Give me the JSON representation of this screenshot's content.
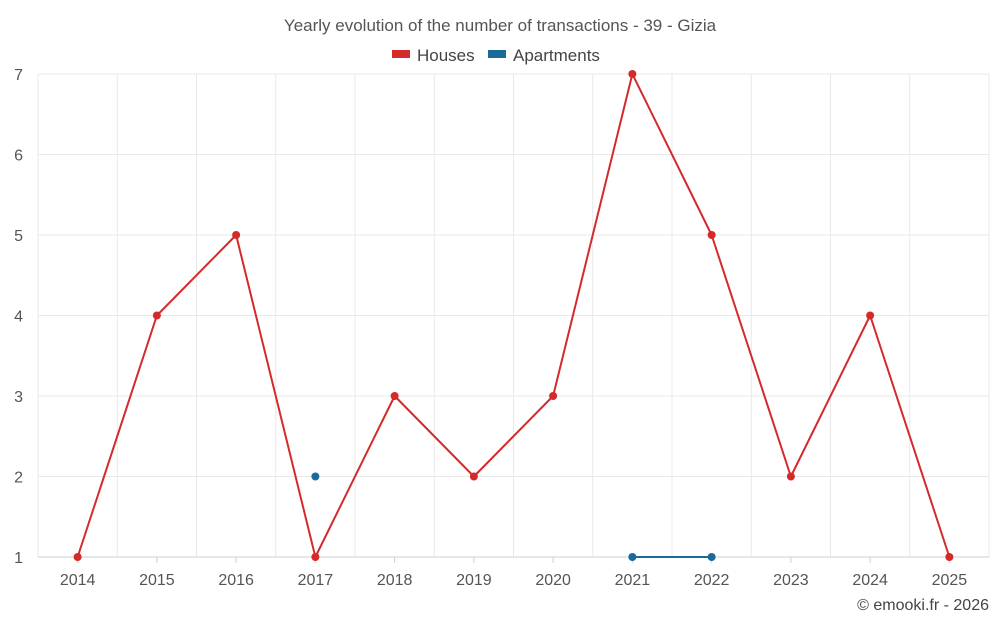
{
  "chart_data": {
    "type": "line",
    "title": "Yearly evolution of the number of transactions - 39 - Gizia",
    "xlabel": "",
    "ylabel": "",
    "categories": [
      "2014",
      "2015",
      "2016",
      "2017",
      "2018",
      "2019",
      "2020",
      "2021",
      "2022",
      "2023",
      "2024",
      "2025"
    ],
    "ylim": [
      1,
      7
    ],
    "yticks": [
      "1",
      "2",
      "3",
      "4",
      "5",
      "6",
      "7"
    ],
    "grid": true,
    "legend_position": "top-center",
    "series": [
      {
        "name": "Houses",
        "color": "#d42a2a",
        "values": [
          1,
          4,
          5,
          1,
          3,
          2,
          3,
          7,
          5,
          2,
          4,
          1
        ]
      },
      {
        "name": "Apartments",
        "color": "#1a6b9a",
        "values": [
          null,
          null,
          null,
          2,
          null,
          null,
          null,
          1,
          1,
          null,
          null,
          null
        ]
      }
    ]
  },
  "credit": "© emooki.fr - 2026"
}
